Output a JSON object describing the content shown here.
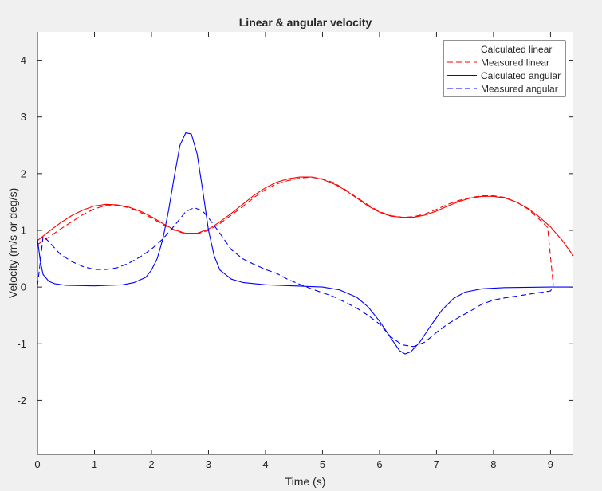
{
  "chart_data": {
    "type": "line",
    "title": "Linear & angular velocity",
    "xlabel": "Time (s)",
    "ylabel": "Velocity (m/s or deg/s)",
    "xlim": [
      0,
      9.4
    ],
    "ylim": [
      -2.95,
      4.5
    ],
    "xticks": [
      0,
      1,
      2,
      3,
      4,
      5,
      6,
      7,
      8,
      9
    ],
    "yticks": [
      -2,
      -1,
      0,
      1,
      2,
      3,
      4
    ],
    "grid": false,
    "legend_position": "top-right",
    "series": [
      {
        "name": "Calculated linear",
        "color": "#ff0000",
        "style": "solid",
        "points": [
          [
            0,
            0.82
          ],
          [
            0.2,
            0.98
          ],
          [
            0.4,
            1.13
          ],
          [
            0.6,
            1.26
          ],
          [
            0.8,
            1.36
          ],
          [
            1.0,
            1.43
          ],
          [
            1.2,
            1.46
          ],
          [
            1.4,
            1.45
          ],
          [
            1.6,
            1.41
          ],
          [
            1.8,
            1.34
          ],
          [
            2.0,
            1.24
          ],
          [
            2.2,
            1.12
          ],
          [
            2.4,
            1.01
          ],
          [
            2.6,
            0.95
          ],
          [
            2.8,
            0.95
          ],
          [
            3.0,
            1.02
          ],
          [
            3.2,
            1.15
          ],
          [
            3.4,
            1.3
          ],
          [
            3.6,
            1.46
          ],
          [
            3.8,
            1.62
          ],
          [
            4.0,
            1.75
          ],
          [
            4.2,
            1.85
          ],
          [
            4.4,
            1.91
          ],
          [
            4.6,
            1.94
          ],
          [
            4.8,
            1.94
          ],
          [
            5.0,
            1.9
          ],
          [
            5.2,
            1.82
          ],
          [
            5.4,
            1.71
          ],
          [
            5.6,
            1.57
          ],
          [
            5.8,
            1.43
          ],
          [
            6.0,
            1.32
          ],
          [
            6.2,
            1.25
          ],
          [
            6.4,
            1.23
          ],
          [
            6.6,
            1.23
          ],
          [
            6.8,
            1.27
          ],
          [
            7.0,
            1.34
          ],
          [
            7.2,
            1.43
          ],
          [
            7.4,
            1.51
          ],
          [
            7.6,
            1.57
          ],
          [
            7.8,
            1.6
          ],
          [
            8.0,
            1.6
          ],
          [
            8.2,
            1.57
          ],
          [
            8.4,
            1.5
          ],
          [
            8.6,
            1.39
          ],
          [
            8.8,
            1.24
          ],
          [
            9.0,
            1.06
          ],
          [
            9.2,
            0.83
          ],
          [
            9.4,
            0.55
          ]
        ]
      },
      {
        "name": "Measured linear",
        "color": "#ff0000",
        "style": "dashed",
        "points": [
          [
            0,
            0.75
          ],
          [
            0.2,
            0.88
          ],
          [
            0.4,
            1.02
          ],
          [
            0.6,
            1.15
          ],
          [
            0.8,
            1.28
          ],
          [
            1.0,
            1.38
          ],
          [
            1.2,
            1.44
          ],
          [
            1.4,
            1.44
          ],
          [
            1.6,
            1.4
          ],
          [
            1.8,
            1.32
          ],
          [
            2.0,
            1.22
          ],
          [
            2.2,
            1.1
          ],
          [
            2.4,
            1.0
          ],
          [
            2.6,
            0.94
          ],
          [
            2.8,
            0.94
          ],
          [
            3.0,
            1.0
          ],
          [
            3.2,
            1.12
          ],
          [
            3.4,
            1.27
          ],
          [
            3.6,
            1.42
          ],
          [
            3.8,
            1.58
          ],
          [
            4.0,
            1.72
          ],
          [
            4.2,
            1.82
          ],
          [
            4.4,
            1.88
          ],
          [
            4.6,
            1.92
          ],
          [
            4.8,
            1.94
          ],
          [
            5.0,
            1.91
          ],
          [
            5.2,
            1.84
          ],
          [
            5.4,
            1.72
          ],
          [
            5.6,
            1.58
          ],
          [
            5.8,
            1.45
          ],
          [
            6.0,
            1.33
          ],
          [
            6.2,
            1.26
          ],
          [
            6.4,
            1.23
          ],
          [
            6.6,
            1.24
          ],
          [
            6.8,
            1.29
          ],
          [
            7.0,
            1.37
          ],
          [
            7.2,
            1.46
          ],
          [
            7.4,
            1.53
          ],
          [
            7.6,
            1.58
          ],
          [
            7.8,
            1.61
          ],
          [
            8.0,
            1.61
          ],
          [
            8.2,
            1.58
          ],
          [
            8.4,
            1.5
          ],
          [
            8.6,
            1.38
          ],
          [
            8.8,
            1.2
          ],
          [
            8.95,
            1.05
          ],
          [
            9.05,
            0.02
          ]
        ]
      },
      {
        "name": "Calculated angular",
        "color": "#0000ff",
        "style": "solid",
        "points": [
          [
            0,
            0.85
          ],
          [
            0.05,
            0.45
          ],
          [
            0.1,
            0.22
          ],
          [
            0.2,
            0.1
          ],
          [
            0.3,
            0.06
          ],
          [
            0.5,
            0.03
          ],
          [
            1.0,
            0.02
          ],
          [
            1.5,
            0.04
          ],
          [
            1.7,
            0.08
          ],
          [
            1.9,
            0.17
          ],
          [
            2.0,
            0.3
          ],
          [
            2.1,
            0.5
          ],
          [
            2.2,
            0.85
          ],
          [
            2.3,
            1.35
          ],
          [
            2.4,
            1.95
          ],
          [
            2.5,
            2.5
          ],
          [
            2.6,
            2.72
          ],
          [
            2.7,
            2.7
          ],
          [
            2.8,
            2.35
          ],
          [
            2.9,
            1.7
          ],
          [
            3.0,
            1.0
          ],
          [
            3.1,
            0.55
          ],
          [
            3.2,
            0.3
          ],
          [
            3.4,
            0.14
          ],
          [
            3.6,
            0.08
          ],
          [
            4.0,
            0.04
          ],
          [
            4.5,
            0.02
          ],
          [
            5.0,
            0.0
          ],
          [
            5.3,
            -0.05
          ],
          [
            5.6,
            -0.18
          ],
          [
            5.8,
            -0.35
          ],
          [
            6.0,
            -0.6
          ],
          [
            6.2,
            -0.9
          ],
          [
            6.35,
            -1.12
          ],
          [
            6.45,
            -1.18
          ],
          [
            6.55,
            -1.14
          ],
          [
            6.7,
            -0.98
          ],
          [
            6.9,
            -0.68
          ],
          [
            7.1,
            -0.4
          ],
          [
            7.3,
            -0.2
          ],
          [
            7.5,
            -0.09
          ],
          [
            7.8,
            -0.03
          ],
          [
            8.2,
            -0.01
          ],
          [
            9.0,
            0.0
          ],
          [
            9.4,
            0.0
          ]
        ]
      },
      {
        "name": "Measured angular",
        "color": "#0000ff",
        "style": "dashed",
        "points": [
          [
            0,
            0.02
          ],
          [
            0.05,
            0.45
          ],
          [
            0.1,
            0.9
          ],
          [
            0.2,
            0.8
          ],
          [
            0.4,
            0.58
          ],
          [
            0.6,
            0.45
          ],
          [
            0.8,
            0.36
          ],
          [
            1.0,
            0.31
          ],
          [
            1.2,
            0.31
          ],
          [
            1.4,
            0.34
          ],
          [
            1.6,
            0.42
          ],
          [
            1.8,
            0.53
          ],
          [
            2.0,
            0.67
          ],
          [
            2.2,
            0.85
          ],
          [
            2.4,
            1.08
          ],
          [
            2.6,
            1.33
          ],
          [
            2.75,
            1.4
          ],
          [
            2.9,
            1.34
          ],
          [
            3.0,
            1.22
          ],
          [
            3.2,
            0.95
          ],
          [
            3.4,
            0.66
          ],
          [
            3.6,
            0.5
          ],
          [
            3.8,
            0.4
          ],
          [
            4.0,
            0.31
          ],
          [
            4.2,
            0.24
          ],
          [
            4.4,
            0.13
          ],
          [
            4.6,
            0.05
          ],
          [
            4.8,
            -0.03
          ],
          [
            5.0,
            -0.1
          ],
          [
            5.2,
            -0.17
          ],
          [
            5.4,
            -0.27
          ],
          [
            5.6,
            -0.37
          ],
          [
            5.8,
            -0.5
          ],
          [
            6.0,
            -0.65
          ],
          [
            6.2,
            -0.88
          ],
          [
            6.4,
            -1.02
          ],
          [
            6.6,
            -1.05
          ],
          [
            6.8,
            -0.97
          ],
          [
            7.0,
            -0.8
          ],
          [
            7.2,
            -0.65
          ],
          [
            7.4,
            -0.53
          ],
          [
            7.6,
            -0.42
          ],
          [
            7.8,
            -0.3
          ],
          [
            8.0,
            -0.23
          ],
          [
            8.2,
            -0.19
          ],
          [
            8.4,
            -0.16
          ],
          [
            8.6,
            -0.13
          ],
          [
            8.8,
            -0.1
          ],
          [
            9.0,
            -0.07
          ],
          [
            9.05,
            0.0
          ]
        ]
      }
    ]
  }
}
